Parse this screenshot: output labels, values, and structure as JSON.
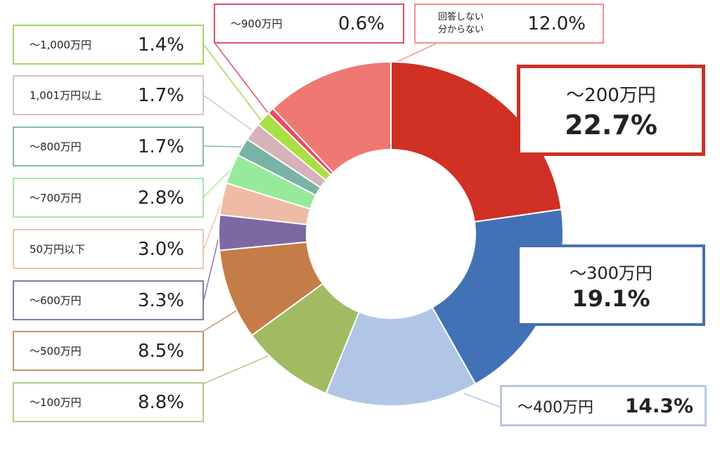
{
  "chart_data": {
    "type": "donut",
    "unit": "%",
    "slices": [
      {
        "label": "～200万円",
        "value": 22.7,
        "pct": "22.7%",
        "color": "#d13024"
      },
      {
        "label": "～300万円",
        "value": 19.1,
        "pct": "19.1%",
        "color": "#4272b5"
      },
      {
        "label": "～400万円",
        "value": 14.3,
        "pct": "14.3%",
        "color": "#b0c6e4"
      },
      {
        "label": "～100万円",
        "value": 8.8,
        "pct": "8.8%",
        "color": "#a2ba62"
      },
      {
        "label": "～500万円",
        "value": 8.5,
        "pct": "8.5%",
        "color": "#c47d48"
      },
      {
        "label": "～600万円",
        "value": 3.3,
        "pct": "3.3%",
        "color": "#7d68a3"
      },
      {
        "label": "50万円以下",
        "value": 3.0,
        "pct": "3.0%",
        "color": "#eebca6"
      },
      {
        "label": "～700万円",
        "value": 2.8,
        "pct": "2.8%",
        "color": "#97ea9c"
      },
      {
        "label": "～800万円",
        "value": 1.7,
        "pct": "1.7%",
        "color": "#79b3a5"
      },
      {
        "label": "1,001万円以上",
        "value": 1.7,
        "pct": "1.7%",
        "color": "#d6b2bb"
      },
      {
        "label": "～1,000万円",
        "value": 1.4,
        "pct": "1.4%",
        "color": "#a8e045"
      },
      {
        "label": "～900万円",
        "value": 0.6,
        "pct": "0.6%",
        "color": "#ef4763"
      },
      {
        "label": "回答しない 分からない",
        "label_lines": [
          "回答しない",
          "分からない"
        ],
        "value": 12.0,
        "pct": "12.0%",
        "color": "#ef7872"
      }
    ]
  }
}
